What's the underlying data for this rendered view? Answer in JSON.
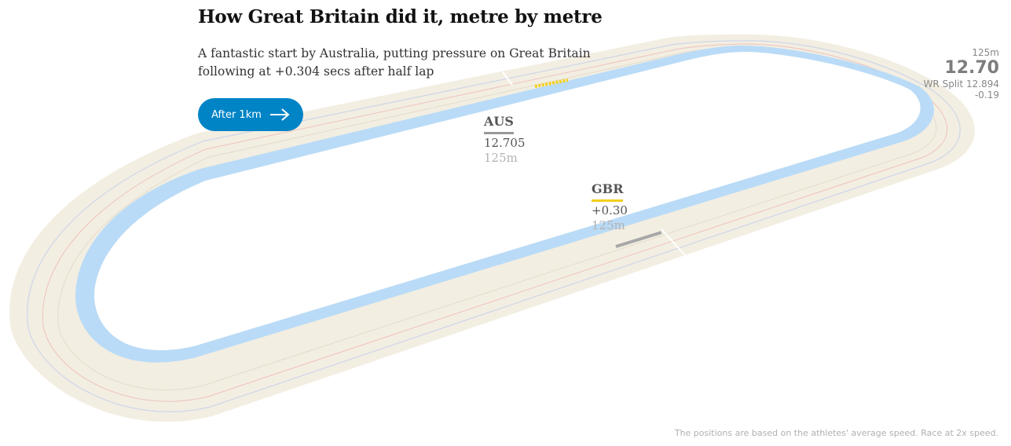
{
  "header": {
    "title": "How Great Britain did it, metre by metre",
    "standfirst": "A fantastic start by Australia, putting pressure on Great Britain following at +0.304 secs after half lap"
  },
  "next_button": {
    "label": "After 1km"
  },
  "teams": {
    "aus": {
      "code": "AUS",
      "time": "12.705",
      "distance": "125m",
      "color": "#999999"
    },
    "gbr": {
      "code": "GBR",
      "time": "+0.30",
      "distance": "125m",
      "color": "#f2cf1f"
    }
  },
  "split": {
    "distance": "125m",
    "time": "12.70",
    "wr_split": "WR Split 12.894",
    "diff": "-0.19"
  },
  "footnote": "The positions are based on the athletes' average speed. Race at 2x speed.",
  "colors": {
    "track": "#f3eee2",
    "blue_band": "#b9dbf7",
    "button": "#0084c6",
    "gbr": "#f2cf1f",
    "aus": "#999999"
  }
}
